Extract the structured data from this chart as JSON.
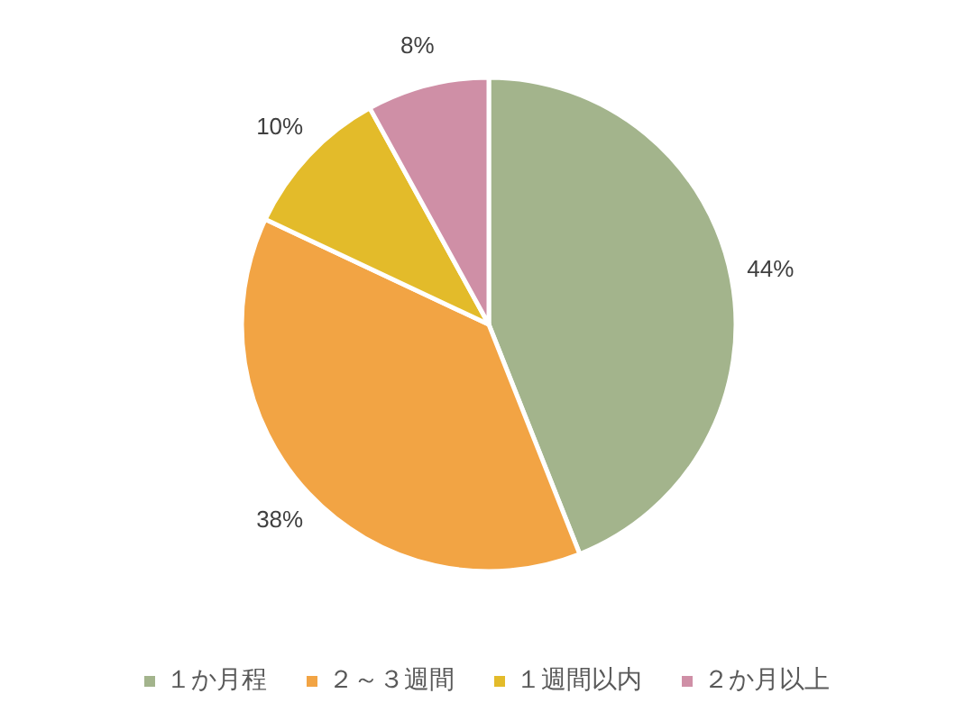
{
  "chart_data": {
    "type": "pie",
    "categories": [
      "１か月程",
      "２～３週間",
      "１週間以内",
      "２か月以上"
    ],
    "values": [
      44,
      38,
      10,
      8
    ],
    "colors": [
      "#a3b48c",
      "#f2a444",
      "#e3bb2a",
      "#cf8fa6"
    ],
    "value_labels": [
      "44%",
      "38%",
      "10%",
      "8%"
    ],
    "legend": "bottom"
  }
}
